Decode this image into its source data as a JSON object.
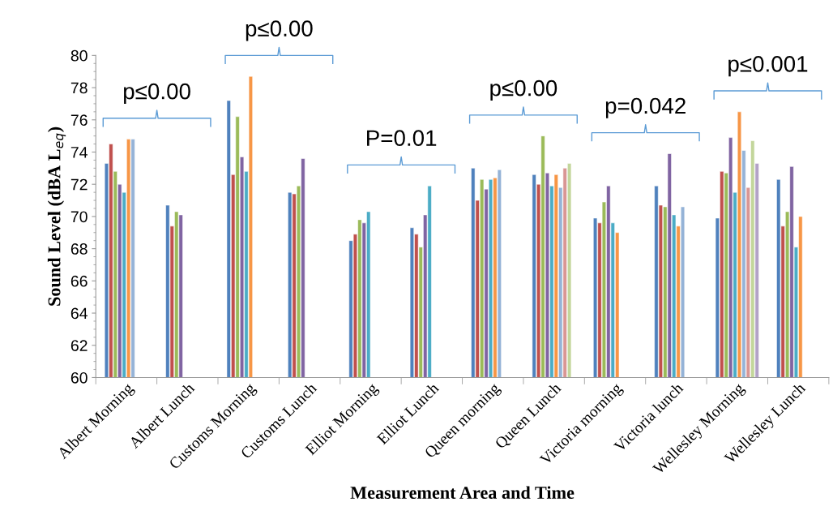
{
  "chart_data": {
    "type": "bar",
    "xlabel": "Measurement Area and Time",
    "ylabel": "Sound Level (dBA L$_{eq}$)",
    "categories": [
      "Albert Morning",
      "Albert Lunch",
      "Customs Morning",
      "Customs Lunch",
      "Elliot Morning",
      "Elliot Lunch",
      "Queen morning",
      "Queen Lunch",
      "Victoria morning",
      "Victoria lunch",
      "Wellesley Morning",
      "Wellesley Lunch"
    ],
    "series": [
      {
        "color": "#4f81bd",
        "values": [
          73.3,
          70.7,
          77.2,
          71.5,
          68.5,
          69.3,
          73.0,
          72.6,
          69.9,
          71.9,
          69.9,
          72.3
        ]
      },
      {
        "color": "#c0504d",
        "values": [
          74.5,
          69.4,
          72.6,
          71.4,
          68.9,
          68.9,
          71.0,
          72.0,
          69.6,
          70.7,
          72.8,
          69.4
        ]
      },
      {
        "color": "#9bbb59",
        "values": [
          72.8,
          70.3,
          76.2,
          71.9,
          69.8,
          68.1,
          72.3,
          75.0,
          70.9,
          70.6,
          72.7,
          70.3
        ]
      },
      {
        "color": "#8064a2",
        "values": [
          72.0,
          70.1,
          73.7,
          73.6,
          69.6,
          70.1,
          71.7,
          72.7,
          71.9,
          73.9,
          74.9,
          73.1
        ]
      },
      {
        "color": "#4bacc6",
        "values": [
          71.5,
          null,
          72.8,
          null,
          70.3,
          71.9,
          72.3,
          71.9,
          69.6,
          70.1,
          71.5,
          68.1
        ]
      },
      {
        "color": "#f79646",
        "values": [
          74.8,
          null,
          78.7,
          null,
          null,
          null,
          72.4,
          72.6,
          69.0,
          69.4,
          76.5,
          70.0
        ]
      },
      {
        "color": "#95b3d7",
        "values": [
          74.8,
          null,
          null,
          null,
          null,
          null,
          72.9,
          71.8,
          null,
          70.6,
          74.1,
          null
        ]
      },
      {
        "color": "#d99694",
        "values": [
          null,
          null,
          null,
          null,
          null,
          null,
          null,
          73.0,
          null,
          null,
          71.8,
          null
        ]
      },
      {
        "color": "#c3d69b",
        "values": [
          null,
          null,
          null,
          null,
          null,
          null,
          null,
          73.3,
          null,
          null,
          74.7,
          null
        ]
      },
      {
        "color": "#b3a2c7",
        "values": [
          null,
          null,
          null,
          null,
          null,
          null,
          null,
          null,
          null,
          null,
          73.3,
          null
        ]
      }
    ],
    "ylim": [
      60,
      80
    ],
    "yticks": [
      60,
      62,
      64,
      66,
      68,
      70,
      72,
      74,
      76,
      78,
      80
    ],
    "annotations": [
      "p≤0.00",
      "p≤0.00",
      "P=0.01",
      "p≤0.00",
      "p=0.042",
      "p≤0.001"
    ]
  }
}
